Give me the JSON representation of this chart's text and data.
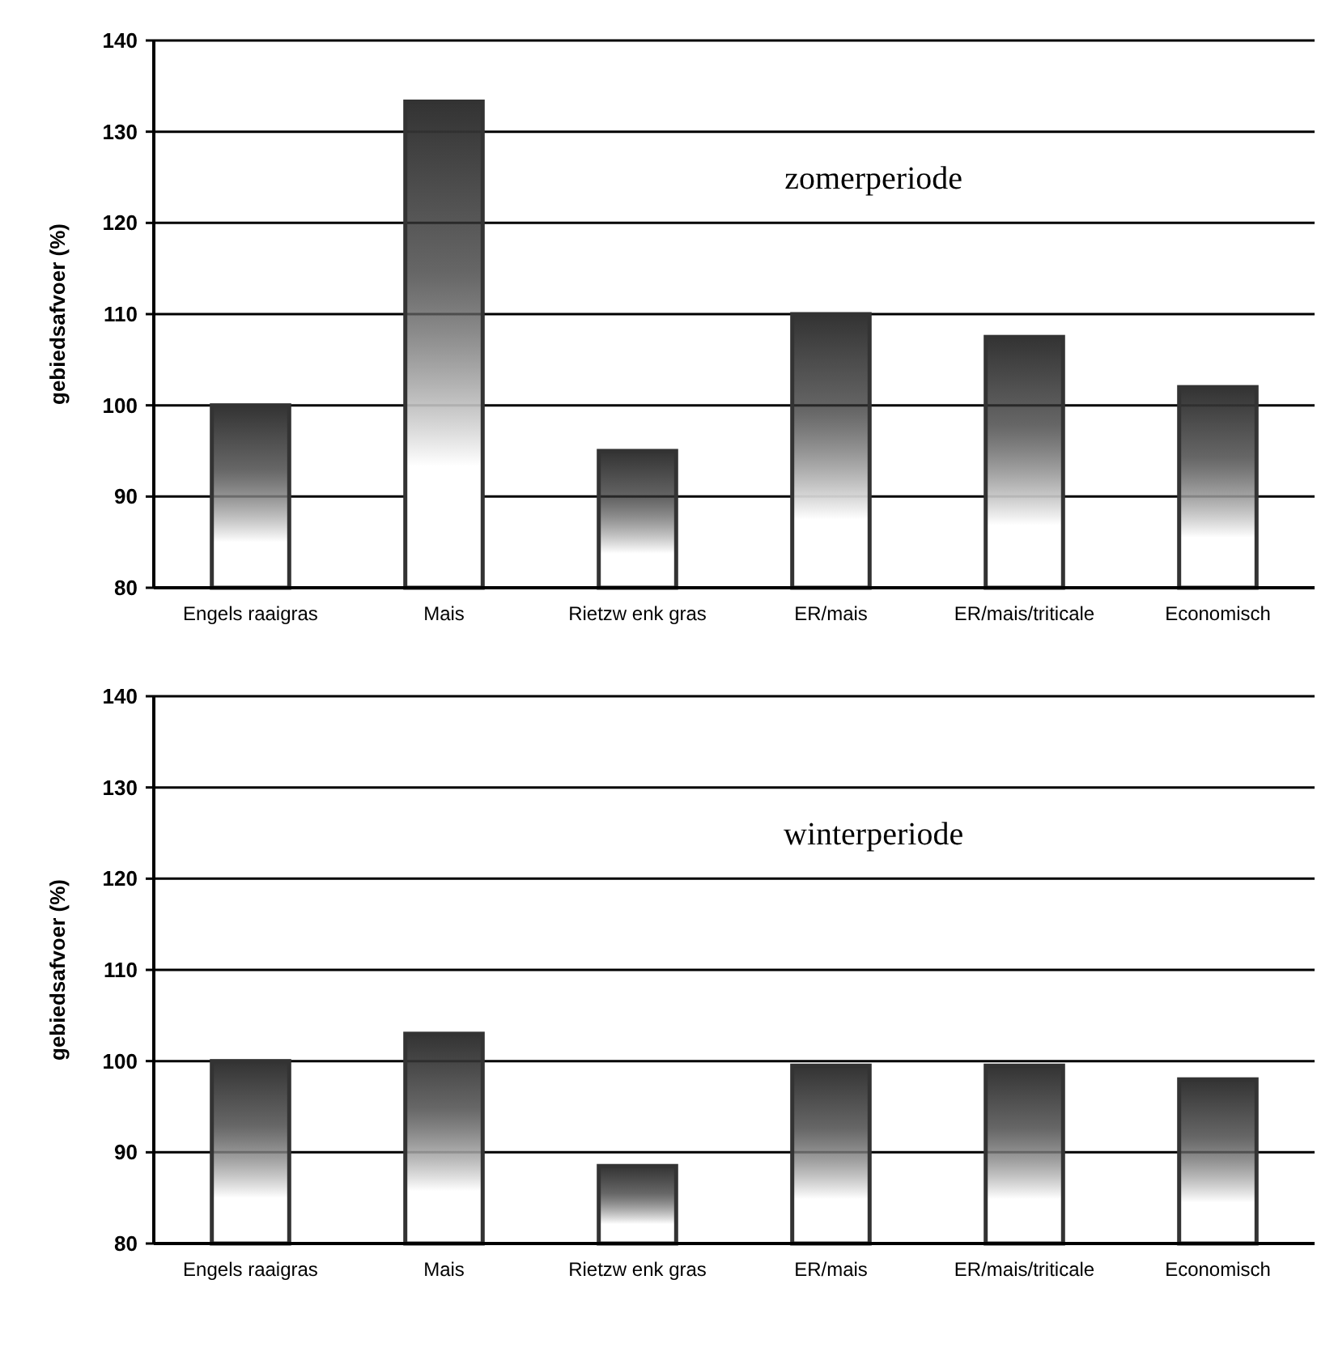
{
  "chart_data": [
    {
      "type": "bar",
      "ylabel": "gebiedsafvoer (%)",
      "annotations": [
        "zomerperiode"
      ],
      "categories": [
        "Engels raaigras",
        "Mais",
        "Rietzw enk gras",
        "ER/mais",
        "ER/mais/triticale",
        "Economisch"
      ],
      "values": [
        100,
        133.3,
        95,
        110,
        107.5,
        102
      ],
      "color": "#333333",
      "ylim": [
        80,
        140
      ],
      "yticks": [
        80,
        90,
        100,
        110,
        120,
        130,
        140
      ],
      "grid": "y"
    },
    {
      "type": "bar",
      "ylabel": "gebiedsafvoer (%)",
      "annotations": [
        "winterperiode"
      ],
      "categories": [
        "Engels raaigras",
        "Mais",
        "Rietzw enk gras",
        "ER/mais",
        "ER/mais/triticale",
        "Economisch"
      ],
      "values": [
        100,
        103,
        88.5,
        99.5,
        99.5,
        98
      ],
      "color": "#333333",
      "ylim": [
        80,
        140
      ],
      "yticks": [
        80,
        90,
        100,
        110,
        120,
        130,
        140
      ],
      "grid": "y"
    }
  ]
}
